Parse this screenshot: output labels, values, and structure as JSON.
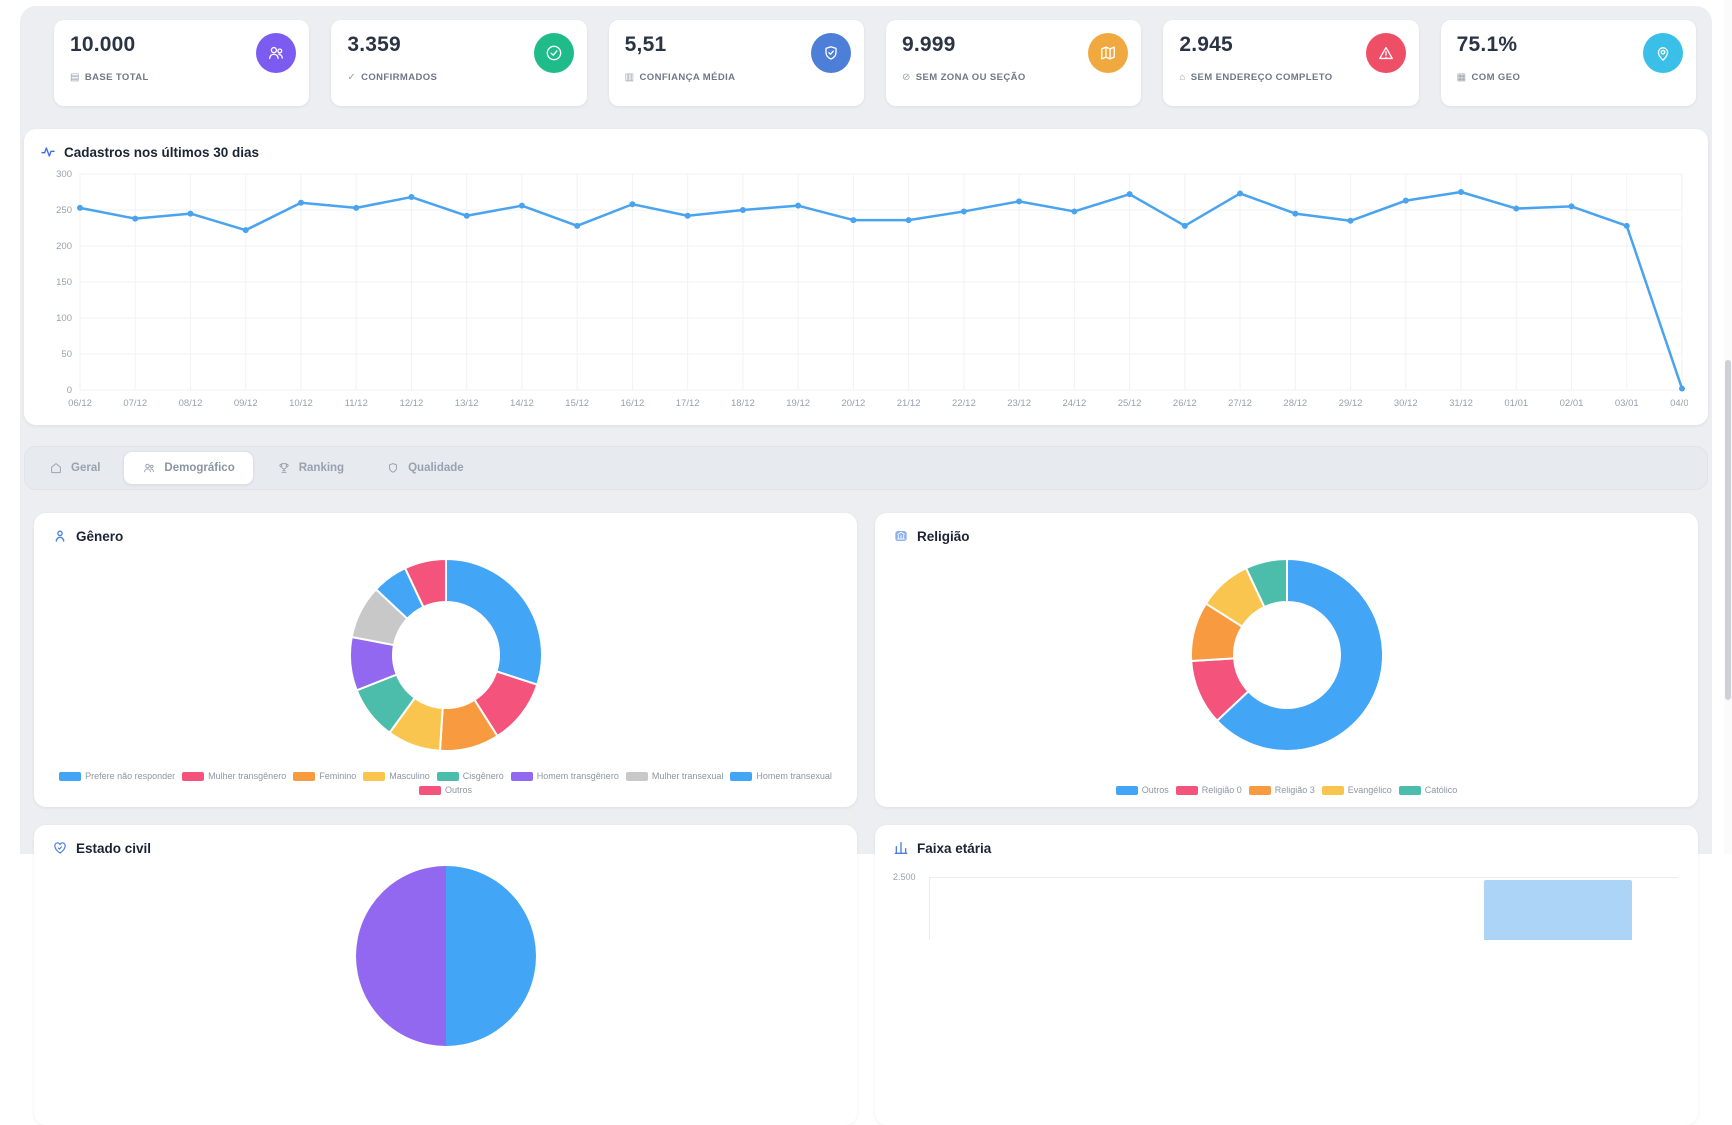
{
  "colors": {
    "panel_bg": "#eceef2",
    "card_bg": "#ffffff",
    "line_blue": "#4aa3ee",
    "grid_line": "#f0f2f4",
    "axis_text": "#98a1ad"
  },
  "stats": [
    {
      "value": "10.000",
      "label": "BASE TOTAL",
      "label_icon_char": "▤",
      "icon": "users-icon",
      "color": "#7c5cf0"
    },
    {
      "value": "3.359",
      "label": "CONFIRMADOS",
      "label_icon_char": "✓",
      "icon": "badge-check-icon",
      "color": "#1fbc89"
    },
    {
      "value": "5,51",
      "label": "CONFIANÇA MÉDIA",
      "label_icon_char": "▥",
      "icon": "shield-check-icon",
      "color": "#4d7ed8"
    },
    {
      "value": "9.999",
      "label": "SEM ZONA OU SEÇÃO",
      "label_icon_char": "⊘",
      "icon": "map-icon",
      "color": "#f0a93f"
    },
    {
      "value": "2.945",
      "label": "SEM ENDEREÇO COMPLETO",
      "label_icon_char": "⌂",
      "icon": "alert-triangle-icon",
      "color": "#ef4e67"
    },
    {
      "value": "75.1%",
      "label": "COM GEO",
      "label_icon_char": "▦",
      "icon": "map-pin-icon",
      "color": "#3ac0e8"
    }
  ],
  "tabs": [
    {
      "label": "Geral",
      "icon": "home-icon",
      "active": false
    },
    {
      "label": "Demográfico",
      "icon": "people-icon",
      "active": true
    },
    {
      "label": "Ranking",
      "icon": "trophy-icon",
      "active": false
    },
    {
      "label": "Qualidade",
      "icon": "shield-icon",
      "active": false
    }
  ],
  "chart_data": [
    {
      "id": "cadastros",
      "type": "line",
      "title": "Cadastros nos últimos 30 dias",
      "x": [
        "06/12",
        "07/12",
        "08/12",
        "09/12",
        "10/12",
        "11/12",
        "12/12",
        "13/12",
        "14/12",
        "15/12",
        "16/12",
        "17/12",
        "18/12",
        "19/12",
        "20/12",
        "21/12",
        "22/12",
        "23/12",
        "24/12",
        "25/12",
        "26/12",
        "27/12",
        "28/12",
        "29/12",
        "30/12",
        "31/12",
        "01/01",
        "02/01",
        "03/01",
        "04/01"
      ],
      "values": [
        253,
        238,
        245,
        222,
        260,
        253,
        268,
        242,
        256,
        228,
        258,
        242,
        250,
        256,
        236,
        236,
        248,
        262,
        248,
        272,
        228,
        273,
        245,
        235,
        263,
        275,
        252,
        255,
        228,
        2
      ],
      "ylim": [
        0,
        300
      ],
      "yticks": [
        0,
        50,
        100,
        150,
        200,
        250,
        300
      ],
      "line_color": "#4aa3ee",
      "grid": true,
      "legend": "none"
    },
    {
      "id": "genero",
      "type": "pie",
      "title": "Gênero",
      "labels": [
        "Prefere não responder",
        "Mulher transgênero",
        "Feminino",
        "Masculino",
        "Cisgênero",
        "Homem transgênero",
        "Mulher transexual",
        "Homem transexual",
        "Outros"
      ],
      "values": [
        30,
        11,
        10,
        9,
        9,
        9,
        9,
        6,
        7
      ],
      "values_unit": "percent-estimated",
      "colors": [
        "#42a5f5",
        "#f4547c",
        "#f89a40",
        "#fac54e",
        "#4cbcab",
        "#9268f0",
        "#c8c8c8",
        "#42a5f5",
        "#f4547c"
      ],
      "legend_position": "bottom"
    },
    {
      "id": "religiao",
      "type": "pie",
      "title": "Religião",
      "labels": [
        "Outros",
        "Religião 0",
        "Religião 3",
        "Evangélico",
        "Católico"
      ],
      "values": [
        63,
        11,
        10,
        9,
        7
      ],
      "values_unit": "percent-estimated",
      "colors": [
        "#42a5f5",
        "#f4547c",
        "#f89a40",
        "#fac54e",
        "#4cbcab"
      ],
      "legend_position": "bottom"
    },
    {
      "id": "estado-civil",
      "type": "pie",
      "title": "Estado civil",
      "visibility": "partially cut off at viewport bottom",
      "visible_slice_colors": [
        "#42a5f5",
        "#9268f0"
      ]
    },
    {
      "id": "faixa-etaria",
      "type": "bar",
      "title": "Faixa etária",
      "visibility": "partially cut off at viewport bottom",
      "ytick_visible": "2.500",
      "bar_color": "#abd4f6"
    }
  ]
}
